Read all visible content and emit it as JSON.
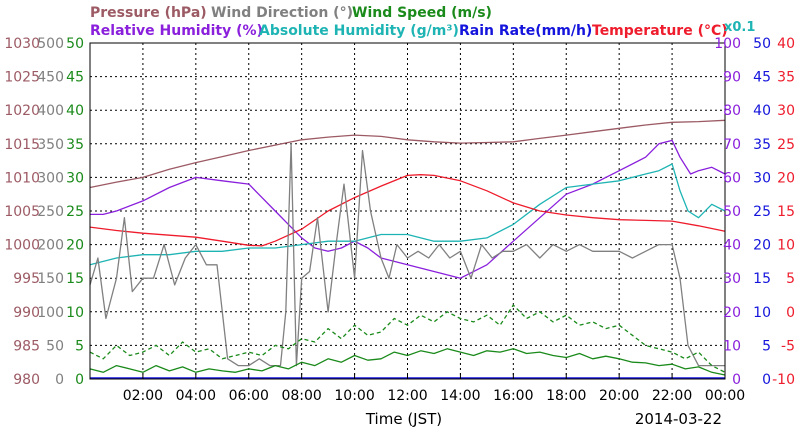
{
  "chart_data": {
    "type": "line",
    "date": "2014-03-22",
    "xlabel": "Time (JST)",
    "x_ticks": [
      "02:00",
      "04:00",
      "06:00",
      "08:00",
      "10:00",
      "12:00",
      "14:00",
      "16:00",
      "18:00",
      "20:00",
      "22:00",
      "00:00"
    ],
    "x_range_hours": [
      0,
      24
    ],
    "legend_row1": [
      {
        "text": "Pressure (hPa)",
        "color": "#9c5a64"
      },
      {
        "text": "Wind Direction (°)",
        "color": "#808080"
      },
      {
        "text": "Wind Speed (m/s)",
        "color": "#1a8a1a"
      }
    ],
    "legend_row2": [
      {
        "text": "Relative Humidity (%)",
        "color": "#8a1fdc"
      },
      {
        "text": "Absolute Humidity (g/m³)",
        "color": "#1fb4b4"
      },
      {
        "text": "Rain Rate(mm/h)",
        "color": "#1414dc"
      },
      {
        "text": "Temperature (°C)",
        "color": "#ee1c2c"
      }
    ],
    "abs_humidity_factor": "x0.1",
    "axes": [
      {
        "name": "Pressure",
        "unit": "hPa",
        "color": "#9c5a64",
        "side": "left",
        "range": [
          980,
          1030
        ],
        "ticks": [
          "980",
          "985",
          "990",
          "995",
          "1000",
          "1005",
          "1010",
          "1015",
          "1020",
          "1025",
          "1030"
        ]
      },
      {
        "name": "Wind Direction",
        "unit": "°",
        "color": "#808080",
        "side": "left",
        "range": [
          0,
          500
        ],
        "ticks": [
          "0",
          "50",
          "100",
          "150",
          "200",
          "250",
          "300",
          "350",
          "400",
          "450",
          "500"
        ]
      },
      {
        "name": "Wind Speed",
        "unit": "m/s",
        "color": "#1a8a1a",
        "side": "left",
        "range": [
          0,
          50
        ],
        "ticks": [
          "0",
          "5",
          "10",
          "15",
          "20",
          "25",
          "30",
          "35",
          "40",
          "45",
          "50"
        ]
      },
      {
        "name": "Humidity",
        "unit": "%",
        "color": "#8a1fdc",
        "side": "right",
        "range": [
          0,
          100
        ],
        "ticks": [
          "0",
          "10",
          "20",
          "30",
          "40",
          "50",
          "60",
          "70",
          "80",
          "90",
          "100"
        ]
      },
      {
        "name": "Rain Rate",
        "unit": "mm/h",
        "color": "#1414dc",
        "side": "right",
        "range": [
          0,
          50
        ],
        "ticks": [
          "0",
          "5",
          "10",
          "15",
          "20",
          "25",
          "30",
          "35",
          "40",
          "45",
          "50"
        ]
      },
      {
        "name": "Temperature",
        "unit": "°C",
        "color": "#ee1c2c",
        "side": "right",
        "range": [
          -10,
          40
        ],
        "ticks": [
          "-10",
          "-5",
          "0",
          "5",
          "10",
          "15",
          "20",
          "25",
          "30",
          "35",
          "40"
        ]
      }
    ],
    "series": [
      {
        "name": "Pressure (hPa)",
        "color": "#9c5a64",
        "axis": 0,
        "x": [
          0,
          1,
          2,
          3,
          4,
          5,
          6,
          7,
          8,
          9,
          10,
          11,
          12,
          13,
          14,
          15,
          16,
          17,
          18,
          19,
          20,
          21,
          22,
          23,
          24
        ],
        "y": [
          1008.5,
          1009.3,
          1010,
          1011.2,
          1012.2,
          1013.1,
          1014,
          1014.8,
          1015.6,
          1016,
          1016.3,
          1016.1,
          1015.6,
          1015.3,
          1015.1,
          1015.2,
          1015.3,
          1015.8,
          1016.3,
          1016.8,
          1017.3,
          1017.8,
          1018.2,
          1018.3,
          1018.5
        ]
      },
      {
        "name": "Relative Humidity (%)",
        "color": "#8a1fdc",
        "axis": 3,
        "x": [
          0,
          0.5,
          1,
          2,
          3,
          4,
          5,
          6,
          6.5,
          7,
          7.5,
          8,
          8.5,
          9,
          9.5,
          10,
          10.5,
          11,
          12,
          13,
          14,
          15,
          16,
          17,
          18,
          19,
          20,
          21,
          21.5,
          22,
          22.3,
          22.7,
          23,
          23.5,
          24
        ],
        "y": [
          49,
          49,
          50,
          53,
          57,
          60,
          59,
          58,
          54,
          50,
          46,
          42,
          39,
          38,
          39,
          41,
          39,
          36,
          34,
          32,
          30,
          34,
          41,
          48,
          55,
          58,
          62,
          66,
          70,
          71,
          66,
          61,
          62,
          63,
          61
        ]
      },
      {
        "name": "Absolute Humidity (g/m³) x0.1",
        "color": "#1fb4b4",
        "axis": 3,
        "x": [
          0,
          1,
          2,
          3,
          4,
          5,
          6,
          7,
          8,
          9,
          10,
          11,
          12,
          13,
          14,
          15,
          16,
          17,
          18,
          19,
          20,
          21,
          21.5,
          22,
          22.3,
          22.6,
          23,
          23.5,
          24
        ],
        "y": [
          34,
          36,
          37,
          37,
          38,
          38,
          39,
          39,
          40,
          41,
          41,
          43,
          43,
          41,
          41,
          42,
          46,
          52,
          57,
          58,
          59,
          61,
          62,
          64,
          56,
          50,
          48,
          52,
          50
        ]
      },
      {
        "name": "Temperature (°C)",
        "color": "#ee1c2c",
        "axis": 5,
        "x": [
          0,
          1,
          2,
          3,
          4,
          5,
          6,
          6.5,
          7,
          8,
          9,
          10,
          11,
          12,
          12.5,
          13,
          14,
          15,
          16,
          17,
          18,
          19,
          20,
          21,
          22,
          23,
          24
        ],
        "y": [
          12.6,
          12.1,
          11.7,
          11.4,
          11.1,
          10.5,
          9.9,
          9.8,
          10.5,
          12.3,
          15,
          17,
          18.7,
          20.3,
          20.4,
          20.3,
          19.5,
          18,
          16.2,
          15,
          14.4,
          14,
          13.7,
          13.6,
          13.5,
          12.8,
          12
        ]
      },
      {
        "name": "Wind Direction (°)",
        "color": "#808080",
        "axis": 1,
        "x": [
          0,
          0.3,
          0.6,
          1,
          1.3,
          1.6,
          2,
          2.4,
          2.8,
          3.2,
          3.6,
          4,
          4.4,
          4.8,
          5.2,
          5.6,
          6,
          6.4,
          6.8,
          7.2,
          7.4,
          7.6,
          7.8,
          8,
          8.3,
          8.6,
          9,
          9.3,
          9.6,
          10,
          10.3,
          10.6,
          11,
          11.3,
          11.6,
          12,
          12.4,
          12.8,
          13.2,
          13.6,
          14,
          14.4,
          14.8,
          15.2,
          15.6,
          16,
          16.5,
          17,
          17.5,
          18,
          18.5,
          19,
          19.5,
          20,
          20.5,
          21,
          21.5,
          22,
          22.3,
          22.6,
          23,
          23.5,
          24
        ],
        "y": [
          140,
          180,
          90,
          150,
          240,
          130,
          150,
          150,
          200,
          140,
          180,
          200,
          170,
          170,
          30,
          20,
          20,
          30,
          20,
          20,
          100,
          350,
          20,
          150,
          160,
          240,
          100,
          200,
          290,
          150,
          340,
          250,
          180,
          150,
          200,
          180,
          190,
          180,
          200,
          180,
          190,
          150,
          200,
          180,
          190,
          190,
          200,
          180,
          200,
          190,
          200,
          190,
          190,
          190,
          180,
          190,
          200,
          200,
          150,
          50,
          20,
          20,
          20
        ]
      },
      {
        "name": "Wind Speed (m/s)",
        "color": "#1a8a1a",
        "axis": 2,
        "x": [
          0,
          0.5,
          1,
          1.5,
          2,
          2.5,
          3,
          3.5,
          4,
          4.5,
          5,
          5.5,
          6,
          6.5,
          7,
          7.5,
          8,
          8.5,
          9,
          9.5,
          10,
          10.5,
          11,
          11.5,
          12,
          12.5,
          13,
          13.5,
          14,
          14.5,
          15,
          15.5,
          16,
          16.5,
          17,
          17.5,
          18,
          18.5,
          19,
          19.5,
          20,
          20.5,
          21,
          21.5,
          22,
          22.5,
          23,
          23.5,
          24
        ],
        "y": [
          1.5,
          1,
          2,
          1.5,
          1,
          2,
          1.2,
          1.8,
          1,
          1.5,
          1.2,
          1,
          1.5,
          1.2,
          2,
          1.5,
          2.5,
          2,
          3,
          2.5,
          3.5,
          2.8,
          3,
          4,
          3.5,
          4.2,
          3.8,
          4.5,
          4,
          3.5,
          4.2,
          4,
          4.5,
          3.8,
          4,
          3.5,
          3.2,
          3.8,
          3,
          3.4,
          3,
          2.5,
          2.4,
          2,
          2.2,
          1.5,
          1.8,
          1,
          0.6
        ]
      },
      {
        "name": "Wind Speed gust (m/s)",
        "color": "#1a8a1a",
        "dashed": true,
        "axis": 2,
        "x": [
          0,
          0.5,
          1,
          1.5,
          2,
          2.5,
          3,
          3.5,
          4,
          4.5,
          5,
          5.5,
          6,
          6.5,
          7,
          7.5,
          8,
          8.5,
          9,
          9.5,
          10,
          10.5,
          11,
          11.5,
          12,
          12.5,
          13,
          13.5,
          14,
          14.5,
          15,
          15.5,
          16,
          16.5,
          17,
          17.5,
          18,
          18.5,
          19,
          19.5,
          20,
          20.5,
          21,
          21.5,
          22,
          22.5,
          23,
          23.5,
          24
        ],
        "y": [
          4,
          3,
          5,
          3.5,
          4,
          5,
          3.5,
          5.5,
          4,
          4.5,
          3,
          3.5,
          4,
          3.5,
          5,
          4.5,
          6,
          5.5,
          7.5,
          6,
          8,
          6.5,
          7,
          9,
          8,
          9.5,
          8.5,
          10,
          9,
          8.5,
          9.5,
          8,
          11,
          9,
          10,
          8.5,
          9.5,
          8,
          8.5,
          7.5,
          8,
          6.5,
          5,
          4.5,
          4,
          3,
          4,
          2,
          1
        ]
      }
    ]
  }
}
